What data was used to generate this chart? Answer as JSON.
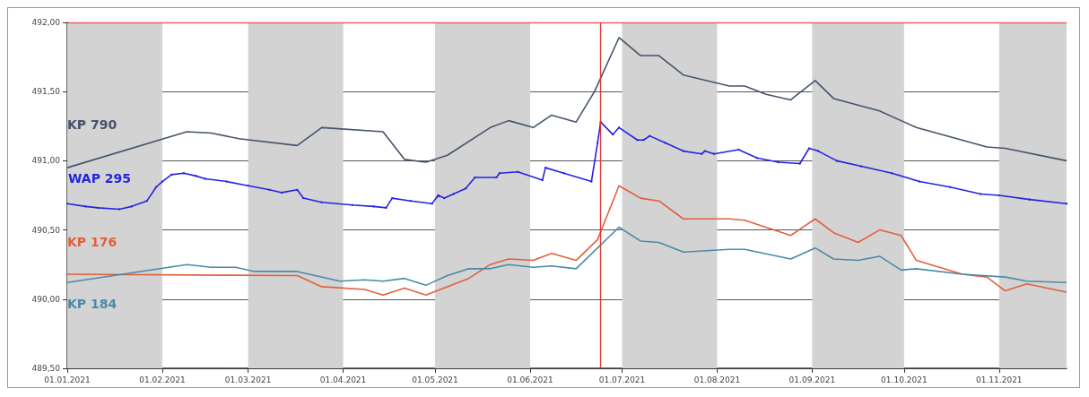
{
  "chart_data": {
    "type": "line",
    "xlim": [
      "2021-01-01",
      "2021-11-23"
    ],
    "xticks": [
      {
        "value": "2021-01-01",
        "label": "01.01.2021"
      },
      {
        "value": "2021-02-01",
        "label": "01.02.2021"
      },
      {
        "value": "2021-03-01",
        "label": "01.03.2021"
      },
      {
        "value": "2021-04-01",
        "label": "01.04.2021"
      },
      {
        "value": "2021-05-01",
        "label": "01.05.2021"
      },
      {
        "value": "2021-06-01",
        "label": "01.06.2021"
      },
      {
        "value": "2021-07-01",
        "label": "01.07.2021"
      },
      {
        "value": "2021-08-01",
        "label": "01.08.2021"
      },
      {
        "value": "2021-09-01",
        "label": "01.09.2021"
      },
      {
        "value": "2021-10-01",
        "label": "01.10.2021"
      },
      {
        "value": "2021-11-01",
        "label": "01.11.2021"
      }
    ],
    "ylim": [
      489.5,
      492
    ],
    "yticks": [
      {
        "value": 489.5,
        "label": "489,50"
      },
      {
        "value": 490,
        "label": "490,00"
      },
      {
        "value": 490.5,
        "label": "490,50"
      },
      {
        "value": 491,
        "label": "491,00"
      },
      {
        "value": 491.5,
        "label": "491,50"
      },
      {
        "value": 492,
        "label": "492,00"
      }
    ],
    "grid": "y",
    "legend": false,
    "marker": "none",
    "line_style": "solid",
    "ref_lines": [
      {
        "axis": "y",
        "value": 492,
        "color": "#e86060"
      },
      {
        "axis": "x",
        "value": "2021-06-24",
        "color": "#e03030"
      }
    ],
    "bands": [
      {
        "axis": "x",
        "from": "2021-01-01",
        "to": "2021-02-01",
        "color": "#d3d3d3"
      },
      {
        "axis": "x",
        "from": "2021-03-01",
        "to": "2021-04-01",
        "color": "#d3d3d3"
      },
      {
        "axis": "x",
        "from": "2021-05-01",
        "to": "2021-06-01",
        "color": "#d3d3d3"
      },
      {
        "axis": "x",
        "from": "2021-07-01",
        "to": "2021-08-01",
        "color": "#d3d3d3"
      },
      {
        "axis": "x",
        "from": "2021-09-01",
        "to": "2021-10-01",
        "color": "#d3d3d3"
      },
      {
        "axis": "x",
        "from": "2021-11-01",
        "to": "2021-11-23",
        "color": "#d3d3d3"
      }
    ],
    "series": [
      {
        "name": "KP 790",
        "color": "#44546a",
        "x": [
          "2021-01-01",
          "2021-02-09",
          "2021-02-17",
          "2021-02-26",
          "2021-03-17",
          "2021-03-25",
          "2021-04-14",
          "2021-04-21",
          "2021-04-28",
          "2021-05-05",
          "2021-05-19",
          "2021-05-25",
          "2021-06-02",
          "2021-06-08",
          "2021-06-16",
          "2021-06-22",
          "2021-06-30",
          "2021-07-07",
          "2021-07-13",
          "2021-07-21",
          "2021-08-05",
          "2021-08-10",
          "2021-08-17",
          "2021-08-25",
          "2021-09-02",
          "2021-09-08",
          "2021-09-23",
          "2021-09-30",
          "2021-10-05",
          "2021-10-28",
          "2021-11-03",
          "2021-11-23"
        ],
        "values": [
          490.95,
          491.21,
          491.2,
          491.16,
          491.11,
          491.24,
          491.21,
          491.01,
          490.99,
          491.04,
          491.24,
          491.29,
          491.24,
          491.33,
          491.28,
          491.5,
          491.89,
          491.76,
          491.76,
          491.62,
          491.54,
          491.54,
          491.48,
          491.44,
          491.58,
          491.45,
          491.36,
          491.29,
          491.24,
          491.1,
          491.09,
          491.0
        ]
      },
      {
        "name": "WAP 295",
        "color": "#2424e0",
        "marker": "square",
        "x": [
          "2021-01-01",
          "2021-01-07",
          "2021-01-11",
          "2021-01-18",
          "2021-01-22",
          "2021-01-27",
          "2021-01-30",
          "2021-02-01",
          "2021-02-04",
          "2021-02-08",
          "2021-02-12",
          "2021-02-15",
          "2021-02-22",
          "2021-03-01",
          "2021-03-08",
          "2021-03-12",
          "2021-03-17",
          "2021-03-19",
          "2021-03-25",
          "2021-04-04",
          "2021-04-11",
          "2021-04-15",
          "2021-04-17",
          "2021-04-23",
          "2021-04-30",
          "2021-05-02",
          "2021-05-04",
          "2021-05-07",
          "2021-05-11",
          "2021-05-14",
          "2021-05-21",
          "2021-05-22",
          "2021-05-28",
          "2021-06-05",
          "2021-06-06",
          "2021-06-12",
          "2021-06-21",
          "2021-06-23",
          "2021-06-24",
          "2021-06-28",
          "2021-06-30",
          "2021-07-06",
          "2021-07-08",
          "2021-07-10",
          "2021-07-15",
          "2021-07-21",
          "2021-07-27",
          "2021-07-28",
          "2021-07-31",
          "2021-08-08",
          "2021-08-14",
          "2021-08-21",
          "2021-08-28",
          "2021-08-31",
          "2021-09-03",
          "2021-09-09",
          "2021-09-17",
          "2021-09-27",
          "2021-10-06",
          "2021-10-16",
          "2021-10-26",
          "2021-11-01",
          "2021-11-11",
          "2021-11-23"
        ],
        "values": [
          490.69,
          490.67,
          490.66,
          490.65,
          490.67,
          490.71,
          490.81,
          490.85,
          490.9,
          490.91,
          490.89,
          490.87,
          490.85,
          490.82,
          490.79,
          490.77,
          490.79,
          490.73,
          490.7,
          490.68,
          490.67,
          490.66,
          490.73,
          490.71,
          490.69,
          490.75,
          490.73,
          490.76,
          490.8,
          490.88,
          490.88,
          490.91,
          490.92,
          490.86,
          490.95,
          490.91,
          490.85,
          491.13,
          491.28,
          491.19,
          491.24,
          491.15,
          491.15,
          491.18,
          491.13,
          491.07,
          491.05,
          491.07,
          491.05,
          491.08,
          491.02,
          490.99,
          490.98,
          491.09,
          491.07,
          491.0,
          490.96,
          490.91,
          490.85,
          490.81,
          490.76,
          490.75,
          490.72,
          490.69
        ]
      },
      {
        "name": "KP 176",
        "color": "#e0603c",
        "x": [
          "2021-01-01",
          "2021-03-17",
          "2021-03-25",
          "2021-04-08",
          "2021-04-14",
          "2021-04-21",
          "2021-04-28",
          "2021-05-12",
          "2021-05-19",
          "2021-05-25",
          "2021-06-02",
          "2021-06-08",
          "2021-06-16",
          "2021-06-23",
          "2021-06-30",
          "2021-07-07",
          "2021-07-13",
          "2021-07-21",
          "2021-08-05",
          "2021-08-10",
          "2021-08-25",
          "2021-09-02",
          "2021-09-08",
          "2021-09-16",
          "2021-09-23",
          "2021-09-30",
          "2021-10-05",
          "2021-10-20",
          "2021-10-28",
          "2021-11-03",
          "2021-11-10",
          "2021-11-23"
        ],
        "values": [
          490.18,
          490.17,
          490.09,
          490.07,
          490.03,
          490.08,
          490.03,
          490.15,
          490.25,
          490.29,
          490.28,
          490.33,
          490.28,
          490.43,
          490.82,
          490.73,
          490.71,
          490.58,
          490.58,
          490.57,
          490.46,
          490.58,
          490.48,
          490.41,
          490.5,
          490.46,
          490.28,
          490.18,
          490.16,
          490.06,
          490.11,
          490.05
        ]
      },
      {
        "name": "KP 184",
        "color": "#4a8aa8",
        "x": [
          "2021-01-01",
          "2021-02-09",
          "2021-02-17",
          "2021-02-25",
          "2021-03-03",
          "2021-03-17",
          "2021-03-31",
          "2021-04-08",
          "2021-04-14",
          "2021-04-21",
          "2021-04-28",
          "2021-05-05",
          "2021-05-12",
          "2021-05-19",
          "2021-05-25",
          "2021-06-02",
          "2021-06-08",
          "2021-06-16",
          "2021-06-30",
          "2021-07-07",
          "2021-07-13",
          "2021-07-21",
          "2021-08-05",
          "2021-08-10",
          "2021-08-25",
          "2021-09-02",
          "2021-09-08",
          "2021-09-16",
          "2021-09-23",
          "2021-09-30",
          "2021-10-05",
          "2021-10-20",
          "2021-11-03",
          "2021-11-10",
          "2021-11-23"
        ],
        "values": [
          490.12,
          490.25,
          490.23,
          490.23,
          490.2,
          490.2,
          490.13,
          490.14,
          490.13,
          490.15,
          490.1,
          490.17,
          490.22,
          490.22,
          490.25,
          490.23,
          490.24,
          490.22,
          490.52,
          490.42,
          490.41,
          490.34,
          490.36,
          490.36,
          490.29,
          490.37,
          490.29,
          490.28,
          490.31,
          490.21,
          490.22,
          490.18,
          490.16,
          490.13,
          490.12
        ]
      }
    ]
  }
}
